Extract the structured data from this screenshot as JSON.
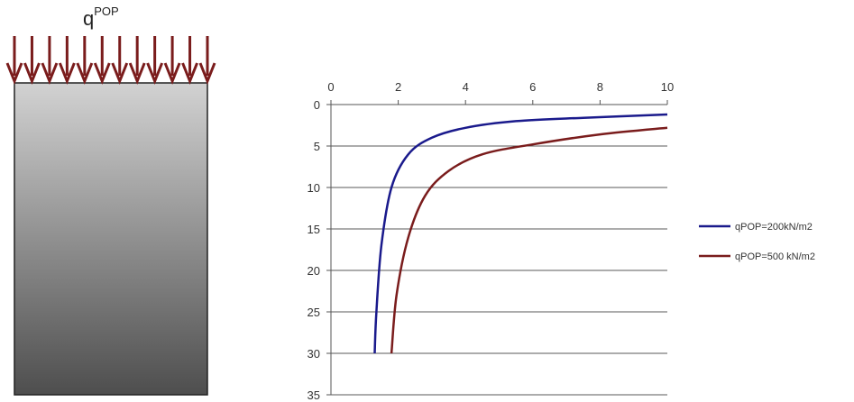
{
  "load_label": {
    "base": "q",
    "superscript": "POP"
  },
  "colors": {
    "arrow": "#7a1c1c",
    "block_top": "#d2d2d2",
    "block_bottom": "#4e4e4e"
  },
  "chart_data": {
    "type": "line",
    "title": "",
    "xlabel": "",
    "ylabel": "",
    "xlim": [
      0,
      10
    ],
    "ylim": [
      0,
      35
    ],
    "y_inverted": true,
    "x_axis_position": "top",
    "grid": "horizontal",
    "legend_position": "right",
    "x_ticks": [
      "0",
      "2",
      "4",
      "6",
      "8",
      "10"
    ],
    "y_ticks": [
      "0",
      "5",
      "10",
      "15",
      "20",
      "25",
      "30",
      "35"
    ],
    "series": [
      {
        "name": "qPOP=200kN/m2",
        "color": "#1a1a8c",
        "x": [
          1.3,
          1.35,
          1.5,
          1.8,
          2.3,
          3.0,
          4.0,
          5.5,
          7.5,
          10.0
        ],
        "y": [
          30,
          25,
          17,
          10,
          6,
          4,
          2.8,
          2.0,
          1.6,
          1.2
        ]
      },
      {
        "name": "qPOP=500 kN/m2",
        "color": "#7a1c1c",
        "x": [
          1.8,
          1.95,
          2.3,
          2.8,
          3.5,
          4.5,
          6.0,
          8.0,
          10.0
        ],
        "y": [
          30,
          23,
          16,
          11,
          8,
          6,
          4.8,
          3.6,
          2.8
        ]
      }
    ]
  }
}
